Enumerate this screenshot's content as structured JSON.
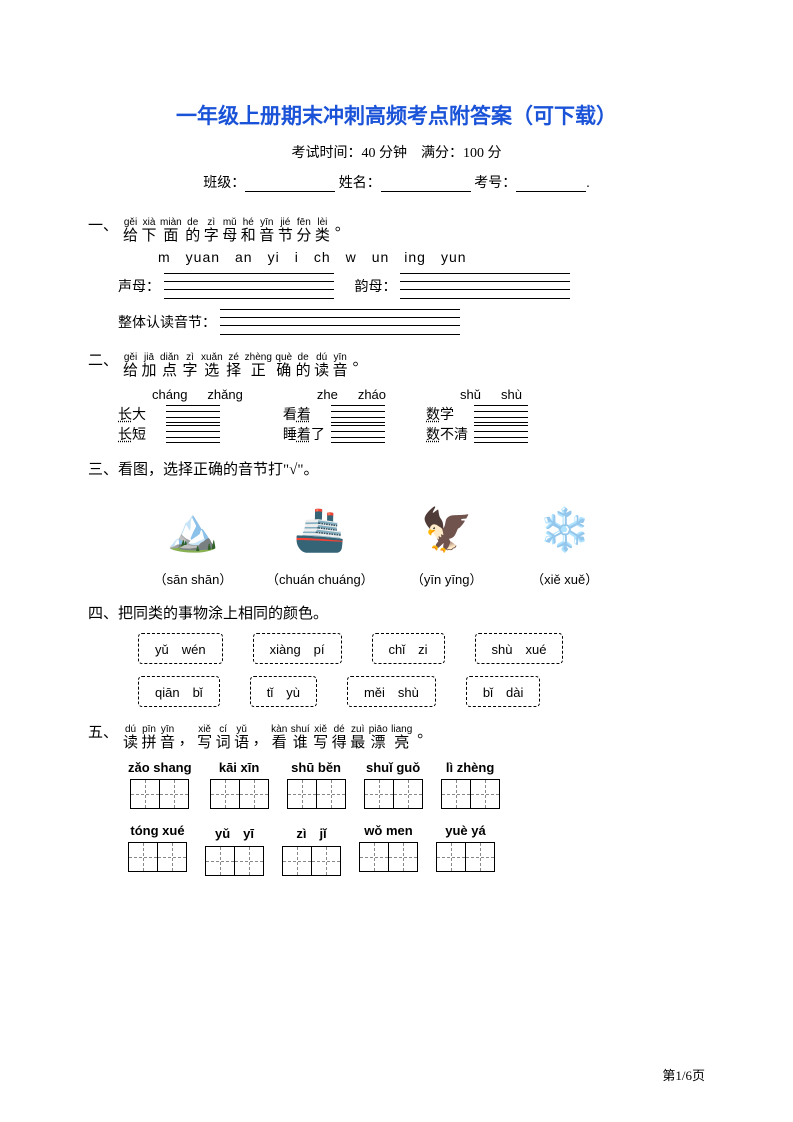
{
  "title": "一年级上册期末冲刺高频考点附答案（可下载）",
  "subtitle": "考试时间：40 分钟　满分：100 分",
  "info": {
    "class": "班级：",
    "name": "姓名：",
    "num": "考号："
  },
  "q1": {
    "ruby": [
      {
        "rt": "gěi",
        "rb": "给"
      },
      {
        "rt": "xià",
        "rb": "下"
      },
      {
        "rt": "miàn",
        "rb": "面"
      },
      {
        "rt": "de",
        "rb": "的"
      },
      {
        "rt": "zì",
        "rb": "字"
      },
      {
        "rt": "mǔ",
        "rb": "母"
      },
      {
        "rt": "hé",
        "rb": "和"
      },
      {
        "rt": "yīn",
        "rb": "音"
      },
      {
        "rt": "jié",
        "rb": "节"
      },
      {
        "rt": "fēn",
        "rb": "分"
      },
      {
        "rt": "lèi",
        "rb": "类"
      }
    ],
    "prefix": "一、",
    "suffix": "。",
    "letters": "m　yuan　an　yi　i　ch　w　un　ing　yun",
    "label_shengmu": "声母：",
    "label_yunmu": "韵母：",
    "label_zhengti": "整体认读音节："
  },
  "q2": {
    "prefix": "二、",
    "ruby": [
      {
        "rt": "gěi",
        "rb": "给"
      },
      {
        "rt": "jiā",
        "rb": "加"
      },
      {
        "rt": "diǎn",
        "rb": "点"
      },
      {
        "rt": "zì",
        "rb": "字"
      },
      {
        "rt": "xuǎn",
        "rb": "选"
      },
      {
        "rt": "zé",
        "rb": "择"
      },
      {
        "rt": "zhèng",
        "rb": "正"
      },
      {
        "rt": "què",
        "rb": "确"
      },
      {
        "rt": "de",
        "rb": "的"
      },
      {
        "rt": "dú",
        "rb": "读"
      },
      {
        "rt": "yīn",
        "rb": "音"
      }
    ],
    "suffix": "。",
    "cols": [
      {
        "heads": [
          "cháng",
          "zhǎng"
        ],
        "words": [
          "长大",
          "长短"
        ],
        "dot": 0
      },
      {
        "heads": [
          "zhe",
          "zháo"
        ],
        "words": [
          "看着",
          "睡着了"
        ],
        "dot": 1
      },
      {
        "heads": [
          "shǔ",
          "shù"
        ],
        "words": [
          "数学",
          "数不清"
        ],
        "dot": 0
      }
    ]
  },
  "q3": {
    "heading": "三、看图，选择正确的音节打\"√\"。",
    "items": [
      {
        "icon": "🏔️",
        "label": "（sān shān）"
      },
      {
        "icon": "🚢",
        "label": "（chuán chuáng）"
      },
      {
        "icon": "🦅",
        "label": "（yīn yīng）"
      },
      {
        "icon": "❄️",
        "label": "（xiě xuě）"
      }
    ]
  },
  "q4": {
    "heading": "四、把同类的事物涂上相同的颜色。",
    "row1": [
      "yǔ　wén",
      "xiàng　pí",
      "chǐ　zi",
      "shù　xué"
    ],
    "row2": [
      "qiān　bǐ",
      "tǐ　yù",
      "měi　shù",
      "bǐ　dài"
    ]
  },
  "q5": {
    "prefix": "五、",
    "ruby": [
      {
        "rt": "dú",
        "rb": "读"
      },
      {
        "rt": "pīn",
        "rb": "拼"
      },
      {
        "rt": "yīn",
        "rb": "音"
      },
      {
        "rt": "",
        "rb": "，"
      },
      {
        "rt": "xiě",
        "rb": "写"
      },
      {
        "rt": "cí",
        "rb": "词"
      },
      {
        "rt": "yǔ",
        "rb": "语"
      },
      {
        "rt": "",
        "rb": "，"
      },
      {
        "rt": "kàn",
        "rb": "看"
      },
      {
        "rt": "shuí",
        "rb": "谁"
      },
      {
        "rt": "xiě",
        "rb": "写"
      },
      {
        "rt": "dé",
        "rb": "得"
      },
      {
        "rt": "zuì",
        "rb": "最"
      },
      {
        "rt": "piāo",
        "rb": "漂"
      },
      {
        "rt": "liang",
        "rb": "亮"
      }
    ],
    "suffix": "。",
    "row1": [
      "zǎo shang",
      "kāi xīn",
      "shū běn",
      "shuǐ guǒ",
      "lì zhèng"
    ],
    "row2": [
      "tóng xué",
      "yǔ　yī",
      "zì　jǐ",
      "wǒ men",
      "yuè yá"
    ]
  },
  "footer": "第1/6页"
}
